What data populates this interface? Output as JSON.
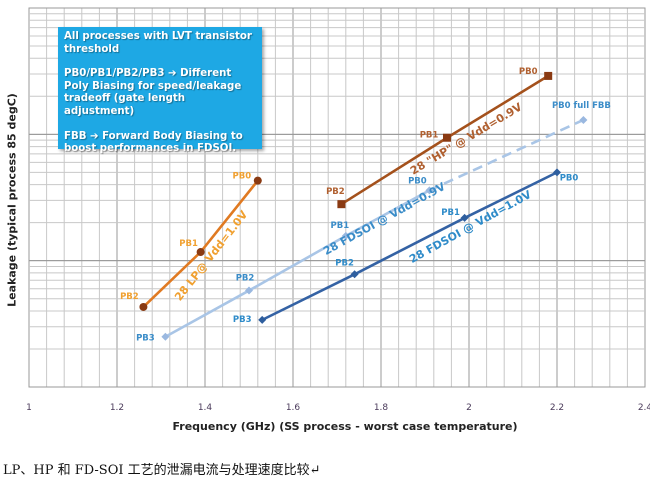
{
  "chart_data": {
    "type": "line",
    "xlabel": "Frequency (GHz) (SS process - worst case temperature)",
    "ylabel": "Leakage  (typical process 85 degC)",
    "xlim": [
      1,
      2.4
    ],
    "x_ticks": [
      "1",
      "1.2",
      "1.4",
      "1.6",
      "1.8",
      "2",
      "2.2",
      "2.4"
    ],
    "y_scale": "log",
    "ylim_relative": [
      1,
      1000
    ],
    "y_tick_labels_shown": false,
    "grid": true,
    "annotation": {
      "line1": "All processes with LVT transistor threshold",
      "line2": "PB0/PB1/PB2/PB3 ➔ Different Poly Biasing for speed/leakage tradeoff (gate length adjustment)",
      "line3": "FBB ➔ Forward Body Biasing to boost performances  in FDSOI."
    },
    "series": [
      {
        "name": "28 LP@ Vdd=1.0V",
        "color": "#e07a22",
        "label_color": "#f0a030",
        "marker": "circle",
        "marker_color": "#8a3a12",
        "points": [
          {
            "label": "PB2",
            "x": 1.26,
            "y": 4.3
          },
          {
            "label": "PB1",
            "x": 1.39,
            "y": 11.7
          },
          {
            "label": "PB0",
            "x": 1.52,
            "y": 43
          }
        ]
      },
      {
        "name": "28 \"HP\" @ Vdd=0.9V",
        "color": "#a4511c",
        "label_color": "#b06030",
        "marker": "square",
        "marker_color": "#8a3a12",
        "points": [
          {
            "label": "PB2",
            "x": 1.71,
            "y": 28
          },
          {
            "label": "PB1",
            "x": 1.95,
            "y": 94
          },
          {
            "label": "PB0",
            "x": 2.18,
            "y": 290
          }
        ]
      },
      {
        "name": "28 FDSOI @ Vdd=0.9V",
        "color": "#a9c5e6",
        "label_color": "#3a8cc8",
        "marker": "diamond",
        "marker_color": "#9ab8e0",
        "points": [
          {
            "label": "PB3",
            "x": 1.31,
            "y": 2.5
          },
          {
            "label": "PB2",
            "x": 1.5,
            "y": 5.8
          },
          {
            "label": "PB1",
            "x": 1.72,
            "y": 15.7
          },
          {
            "label": "PB0",
            "x": 1.91,
            "y": 36
          }
        ],
        "extension": {
          "label": "PB0 full FBB",
          "x": 2.26,
          "y": 130,
          "style": "dashed"
        }
      },
      {
        "name": "28 FDSOI @ Vdd=1.0V",
        "color": "#3462a4",
        "label_color": "#2e8bc9",
        "marker": "diamond",
        "marker_color": "#2e5e9e",
        "points": [
          {
            "label": "PB3",
            "x": 1.53,
            "y": 3.4
          },
          {
            "label": "PB2",
            "x": 1.74,
            "y": 7.8
          },
          {
            "label": "PB1",
            "x": 1.99,
            "y": 21.8
          },
          {
            "label": "PB0",
            "x": 2.2,
            "y": 50
          }
        ]
      }
    ]
  },
  "caption": "LP、HP 和 FD-SOI 工艺的泄漏电流与处理速度比较↵"
}
